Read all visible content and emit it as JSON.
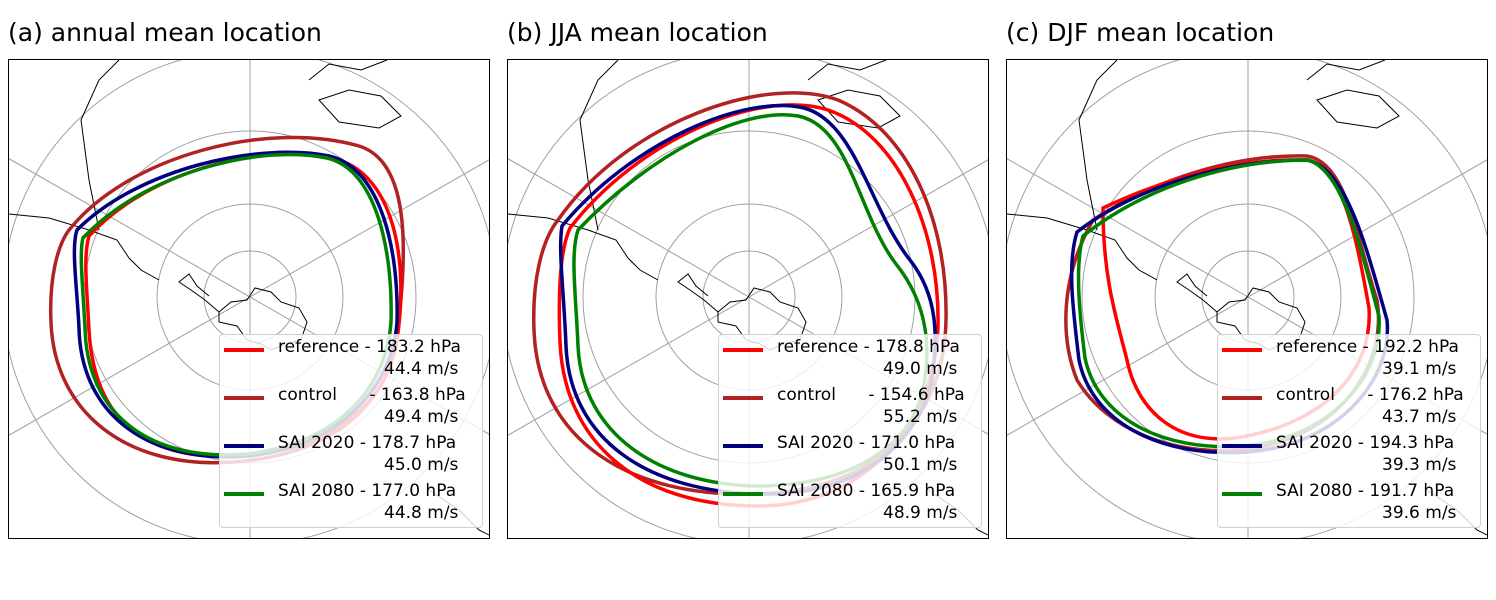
{
  "colors": {
    "reference": "#ff0000",
    "control": "#b22222",
    "sai2020": "#000080",
    "sai2080": "#008000",
    "grid": "#a0a0a0",
    "coast": "#000000"
  },
  "panels": [
    {
      "title": "(a) annual mean location",
      "legend": [
        {
          "line1": "reference - 183.2 hPa",
          "line2": "44.4 m/s",
          "color": "#ff0000"
        },
        {
          "line1": "control      - 163.8 hPa",
          "line2": "49.4 m/s",
          "color": "#b22222"
        },
        {
          "line1": "SAI 2020 - 178.7 hPa",
          "line2": "45.0 m/s",
          "color": "#000080"
        },
        {
          "line1": "SAI 2080 - 177.0 hPa",
          "line2": "44.8 m/s",
          "color": "#008000"
        }
      ]
    },
    {
      "title": "(b) JJA mean location",
      "legend": [
        {
          "line1": "reference - 178.8 hPa",
          "line2": "49.0 m/s",
          "color": "#ff0000"
        },
        {
          "line1": "control      - 154.6 hPa",
          "line2": "55.2 m/s",
          "color": "#b22222"
        },
        {
          "line1": "SAI 2020 - 171.0 hPa",
          "line2": "50.1 m/s",
          "color": "#000080"
        },
        {
          "line1": "SAI 2080 - 165.9 hPa",
          "line2": "48.9 m/s",
          "color": "#008000"
        }
      ]
    },
    {
      "title": "(c) DJF mean location",
      "legend": [
        {
          "line1": "reference - 192.2 hPa",
          "line2": "39.1 m/s",
          "color": "#ff0000"
        },
        {
          "line1": "control      - 176.2 hPa",
          "line2": "43.7 m/s",
          "color": "#b22222"
        },
        {
          "line1": "SAI 2020 - 194.3 hPa",
          "line2": "39.3 m/s",
          "color": "#000080"
        },
        {
          "line1": "SAI 2080 - 191.7 hPa",
          "line2": "39.6 m/s",
          "color": "#008000"
        }
      ]
    }
  ]
}
